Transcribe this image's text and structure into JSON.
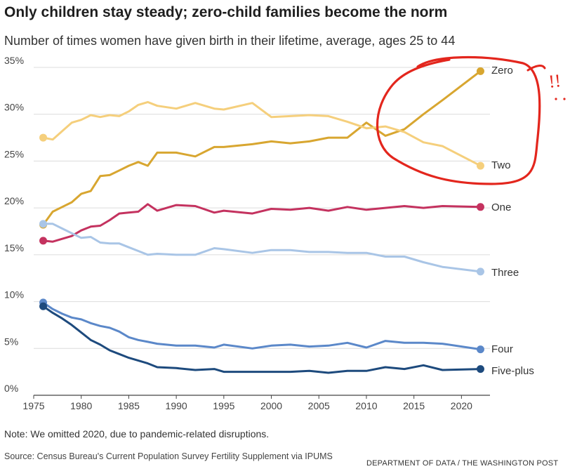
{
  "title": "Only children stay steady; zero-child families become the norm",
  "subtitle": "Number of times women have given birth in their lifetime, average, ages 25 to 44",
  "note": "Note: We omitted 2020, due to pandemic-related disruptions.",
  "source": "Source: Census Bureau's Current Population Survey Fertility Supplement via IPUMS",
  "credit": "DEPARTMENT OF DATA / THE WASHINGTON POST",
  "annotation": {
    "text": "!!",
    "color": "#e3261d"
  },
  "chart_data": {
    "type": "line",
    "xlim": [
      1975,
      2023
    ],
    "ylim": [
      0,
      35
    ],
    "x_ticks": [
      1975,
      1980,
      1985,
      1990,
      1995,
      2000,
      2005,
      2010,
      2015,
      2020
    ],
    "x_tick_labels": [
      "1975",
      "1980",
      "1985",
      "1990",
      "1995",
      "2000",
      "2005",
      "2010",
      "2015",
      "2020"
    ],
    "y_ticks": [
      0,
      5,
      10,
      15,
      20,
      25,
      30,
      35
    ],
    "y_tick_labels": [
      "0%",
      "5%",
      "10%",
      "15%",
      "20%",
      "25%",
      "30%",
      "35%"
    ],
    "grid": "horizontal",
    "series": [
      {
        "name": "Zero",
        "color": "#d8a630",
        "x": [
          1976,
          1977,
          1978,
          1979,
          1980,
          1981,
          1982,
          1983,
          1984,
          1985,
          1986,
          1987,
          1988,
          1990,
          1992,
          1994,
          1995,
          1998,
          2000,
          2002,
          2004,
          2006,
          2008,
          2010,
          2012,
          2014,
          2016,
          2018,
          2022
        ],
        "y": [
          18.2,
          19.6,
          20.1,
          20.6,
          21.5,
          21.8,
          23.4,
          23.5,
          24.0,
          24.5,
          24.9,
          24.5,
          25.9,
          25.9,
          25.5,
          26.5,
          26.5,
          26.8,
          27.1,
          26.9,
          27.1,
          27.5,
          27.5,
          29.1,
          27.7,
          28.4,
          30.0,
          31.5,
          34.6
        ]
      },
      {
        "name": "Two",
        "color": "#f5cf7c",
        "x": [
          1976,
          1977,
          1978,
          1979,
          1980,
          1981,
          1982,
          1983,
          1984,
          1985,
          1986,
          1987,
          1988,
          1990,
          1992,
          1994,
          1995,
          1998,
          2000,
          2002,
          2004,
          2006,
          2008,
          2010,
          2012,
          2014,
          2016,
          2018,
          2022
        ],
        "y": [
          27.5,
          27.3,
          28.2,
          29.1,
          29.4,
          29.9,
          29.7,
          29.9,
          29.8,
          30.3,
          31.0,
          31.3,
          30.9,
          30.6,
          31.2,
          30.6,
          30.5,
          31.2,
          29.7,
          29.8,
          29.9,
          29.8,
          29.2,
          28.5,
          28.7,
          28.1,
          27.0,
          26.6,
          24.5
        ]
      },
      {
        "name": "One",
        "color": "#c4325f",
        "x": [
          1976,
          1977,
          1978,
          1979,
          1980,
          1981,
          1982,
          1983,
          1984,
          1985,
          1986,
          1987,
          1988,
          1990,
          1992,
          1994,
          1995,
          1998,
          2000,
          2002,
          2004,
          2006,
          2008,
          2010,
          2012,
          2014,
          2016,
          2018,
          2022
        ],
        "y": [
          16.5,
          16.4,
          16.7,
          17.0,
          17.6,
          18.0,
          18.1,
          18.7,
          19.4,
          19.5,
          19.6,
          20.4,
          19.7,
          20.3,
          20.2,
          19.5,
          19.7,
          19.4,
          19.9,
          19.8,
          20.0,
          19.7,
          20.1,
          19.8,
          20.0,
          20.2,
          20.0,
          20.2,
          20.1
        ]
      },
      {
        "name": "Three",
        "color": "#a9c5e6",
        "x": [
          1976,
          1977,
          1978,
          1979,
          1980,
          1981,
          1982,
          1983,
          1984,
          1985,
          1986,
          1987,
          1988,
          1990,
          1992,
          1994,
          1995,
          1998,
          2000,
          2002,
          2004,
          2006,
          2008,
          2010,
          2012,
          2014,
          2016,
          2018,
          2022
        ],
        "y": [
          18.3,
          18.3,
          17.8,
          17.3,
          16.8,
          16.9,
          16.3,
          16.2,
          16.2,
          15.8,
          15.4,
          15.0,
          15.1,
          15.0,
          15.0,
          15.7,
          15.6,
          15.2,
          15.5,
          15.5,
          15.3,
          15.3,
          15.2,
          15.2,
          14.8,
          14.8,
          14.2,
          13.7,
          13.2
        ]
      },
      {
        "name": "Four",
        "color": "#5b88c9",
        "x": [
          1976,
          1977,
          1978,
          1979,
          1980,
          1981,
          1982,
          1983,
          1984,
          1985,
          1986,
          1987,
          1988,
          1990,
          1992,
          1994,
          1995,
          1998,
          2000,
          2002,
          2004,
          2006,
          2008,
          2010,
          2012,
          2014,
          2016,
          2018,
          2022
        ],
        "y": [
          9.9,
          9.2,
          8.7,
          8.3,
          8.1,
          7.7,
          7.4,
          7.2,
          6.8,
          6.2,
          5.9,
          5.7,
          5.5,
          5.3,
          5.3,
          5.1,
          5.4,
          5.0,
          5.3,
          5.4,
          5.2,
          5.3,
          5.6,
          5.1,
          5.8,
          5.6,
          5.6,
          5.5,
          4.9
        ]
      },
      {
        "name": "Five-plus",
        "color": "#1d4a7d",
        "x": [
          1976,
          1977,
          1978,
          1979,
          1980,
          1981,
          1982,
          1983,
          1984,
          1985,
          1986,
          1987,
          1988,
          1990,
          1992,
          1994,
          1995,
          1998,
          2000,
          2002,
          2004,
          2006,
          2008,
          2010,
          2012,
          2014,
          2016,
          2018,
          2022
        ],
        "y": [
          9.5,
          8.8,
          8.2,
          7.5,
          6.7,
          5.9,
          5.4,
          4.8,
          4.4,
          4.0,
          3.7,
          3.4,
          3.0,
          2.9,
          2.7,
          2.8,
          2.5,
          2.5,
          2.5,
          2.5,
          2.6,
          2.4,
          2.6,
          2.6,
          3.0,
          2.8,
          3.2,
          2.7,
          2.8
        ]
      }
    ]
  }
}
